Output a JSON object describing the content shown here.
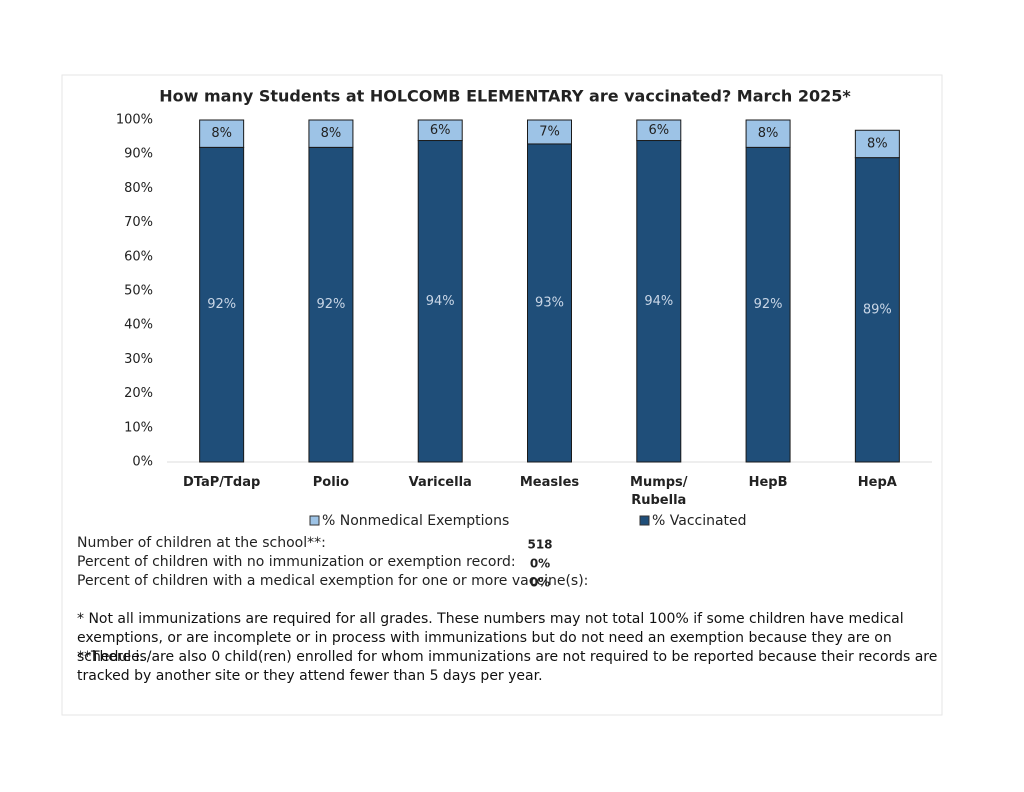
{
  "chart_data": {
    "type": "stacked_bar",
    "title": "How many Students at HOLCOMB ELEMENTARY are vaccinated?  March 2025*",
    "categories": [
      "DTaP/Tdap",
      "Polio",
      "Varicella",
      "Measles",
      "Mumps/\nRubella",
      "HepB",
      "HepA"
    ],
    "series": [
      {
        "name": "% Vaccinated",
        "color": "#1f4e79",
        "values": [
          92,
          92,
          94,
          93,
          94,
          92,
          89
        ],
        "value_labels": [
          "92%",
          "92%",
          "94%",
          "93%",
          "94%",
          "92%",
          "89%"
        ]
      },
      {
        "name": "% Nonmedical Exemptions",
        "color": "#9dc3e6",
        "values": [
          8,
          8,
          6,
          7,
          6,
          8,
          8
        ],
        "value_labels": [
          "8%",
          "8%",
          "6%",
          "7%",
          "6%",
          "8%",
          "8%"
        ]
      }
    ],
    "ylim": [
      0,
      100
    ],
    "yticks": [
      {
        "value": 0,
        "label": "0%"
      },
      {
        "value": 10,
        "label": "10%"
      },
      {
        "value": 20,
        "label": "20%"
      },
      {
        "value": 30,
        "label": "30%"
      },
      {
        "value": 40,
        "label": "40%"
      },
      {
        "value": 50,
        "label": "50%"
      },
      {
        "value": 60,
        "label": "60%"
      },
      {
        "value": 70,
        "label": "70%"
      },
      {
        "value": 80,
        "label": "80%"
      },
      {
        "value": 90,
        "label": "90%"
      },
      {
        "value": 100,
        "label": "100%"
      }
    ],
    "grid": false
  },
  "stats": [
    {
      "label": "Number of children at the school**:",
      "value": 518
    },
    {
      "label": "Percent of children with no immunization or exemption record:",
      "value": "0%"
    },
    {
      "label": "Percent of children with a medical exemption for one or more vaccine(s):",
      "value": "0%"
    }
  ],
  "footnotes": [
    "* Not all immunizations are required for all grades. These numbers may not total 100% if some children have medical exemptions, or are incomplete or in process with immunizations but do not need an exemption because they are on schedule.",
    "**There is/are also  0  child(ren) enrolled for whom immunizations are not required to be reported because their records are tracked by another site or they attend fewer than 5 days per year."
  ]
}
